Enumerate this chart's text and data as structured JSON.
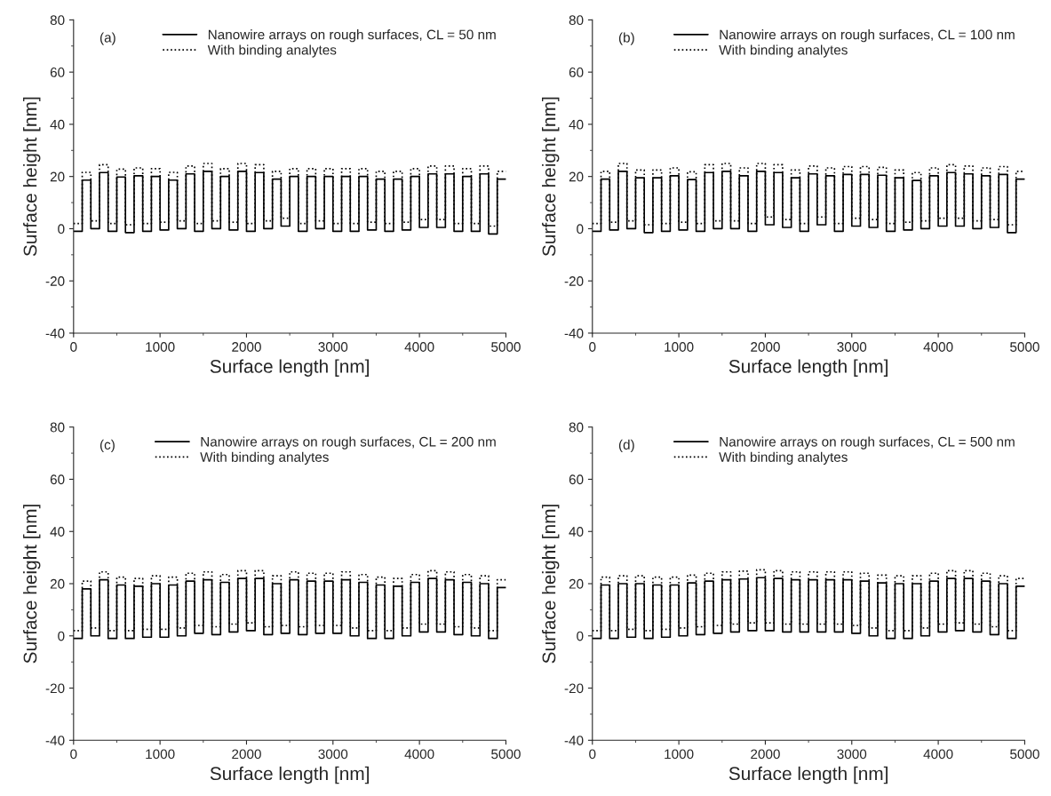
{
  "chart_data": [
    {
      "type": "line",
      "annotations": [
        "(a)"
      ],
      "xlabel": "Surface length [nm]",
      "ylabel": "Surface height [nm]",
      "xlim": [
        0,
        5000
      ],
      "xticks": [
        0,
        1000,
        2000,
        3000,
        4000,
        5000
      ],
      "ylim": [
        -40,
        80
      ],
      "yticks": [
        -40,
        -20,
        0,
        20,
        40,
        60,
        80
      ],
      "grid": false,
      "legend": "top right",
      "marker": "none",
      "x": [
        0,
        100,
        100,
        200,
        200,
        300,
        300,
        400,
        400,
        500,
        500,
        600,
        600,
        700,
        700,
        800,
        800,
        900,
        900,
        1000,
        1000,
        1100,
        1100,
        1200,
        1200,
        1300,
        1300,
        1400,
        1400,
        1500,
        1500,
        1600,
        1600,
        1700,
        1700,
        1800,
        1800,
        1900,
        1900,
        2000,
        2000,
        2100,
        2100,
        2200,
        2200,
        2300,
        2300,
        2400,
        2400,
        2500,
        2500,
        2600,
        2600,
        2700,
        2700,
        2800,
        2800,
        2900,
        2900,
        3000,
        3000,
        3100,
        3100,
        3200,
        3200,
        3300,
        3300,
        3400,
        3400,
        3500,
        3500,
        3600,
        3600,
        3700,
        3700,
        3800,
        3800,
        3900,
        3900,
        4000,
        4000,
        4100,
        4100,
        4200,
        4200,
        4300,
        4300,
        4400,
        4400,
        4500,
        4500,
        4600,
        4600,
        4700,
        4700,
        4800,
        4800,
        4900,
        4900,
        5000
      ],
      "series": [
        {
          "name": "Nanowire arrays on rough surfaces, CL = 50 nm",
          "color": "#000000",
          "line_style": "solid",
          "values": [
            -1,
            -1,
            18.6,
            18.6,
            0,
            0,
            21.5,
            21.5,
            -1,
            -1,
            19.8,
            19.8,
            -1.5,
            -1.5,
            20.3,
            20.3,
            -1,
            -1,
            20,
            20,
            -0.5,
            -0.5,
            18.6,
            18.6,
            0,
            0,
            21,
            21,
            -1,
            -1,
            22,
            22,
            0,
            0,
            20,
            20,
            -0.5,
            -0.5,
            22,
            22,
            -1,
            -1,
            21.5,
            21.5,
            0,
            0,
            19,
            19,
            1,
            1,
            20,
            20,
            -1,
            -1,
            20,
            20,
            0,
            0,
            20,
            20,
            -1,
            -1,
            20,
            20,
            -1,
            -1,
            20,
            20,
            -0.5,
            -0.5,
            19,
            19,
            -1,
            -1,
            19,
            19,
            -0.5,
            -0.5,
            20,
            20,
            0.5,
            0.5,
            21,
            21,
            0.5,
            0.5,
            21,
            21,
            -1,
            -1,
            20,
            20,
            -1,
            -1,
            21,
            21,
            -2,
            -2,
            19,
            19
          ]
        },
        {
          "name": "With binding analytes",
          "color": "#000000",
          "line_style": "dotted",
          "values": [
            2,
            2,
            21.6,
            21.6,
            3,
            3,
            24.5,
            24.5,
            2,
            2,
            22.8,
            22.8,
            1.5,
            1.5,
            23.3,
            23.3,
            2,
            2,
            23,
            23,
            2.5,
            2.5,
            21.6,
            21.6,
            3,
            3,
            24,
            24,
            2,
            2,
            25,
            25,
            3,
            3,
            23,
            23,
            2.5,
            2.5,
            25,
            25,
            2,
            2,
            24.5,
            24.5,
            3,
            3,
            22,
            22,
            4,
            4,
            23,
            23,
            2,
            2,
            23,
            23,
            3,
            3,
            23,
            23,
            2,
            2,
            23,
            23,
            2,
            2,
            23,
            23,
            2.5,
            2.5,
            22,
            22,
            2,
            2,
            22,
            22,
            2.5,
            2.5,
            23,
            23,
            3.5,
            3.5,
            24,
            24,
            3.5,
            3.5,
            24,
            24,
            2,
            2,
            23,
            23,
            2,
            2,
            24,
            24,
            1,
            1,
            22,
            22
          ]
        }
      ]
    },
    {
      "type": "line",
      "annotations": [
        "(b)"
      ],
      "xlabel": "Surface length [nm]",
      "ylabel": "Surface height [nm]",
      "xlim": [
        0,
        5000
      ],
      "xticks": [
        0,
        1000,
        2000,
        3000,
        4000,
        5000
      ],
      "ylim": [
        -40,
        80
      ],
      "yticks": [
        -40,
        -20,
        0,
        20,
        40,
        60,
        80
      ],
      "grid": false,
      "legend": "top right",
      "marker": "none",
      "x": [
        0,
        100,
        100,
        200,
        200,
        300,
        300,
        400,
        400,
        500,
        500,
        600,
        600,
        700,
        700,
        800,
        800,
        900,
        900,
        1000,
        1000,
        1100,
        1100,
        1200,
        1200,
        1300,
        1300,
        1400,
        1400,
        1500,
        1500,
        1600,
        1600,
        1700,
        1700,
        1800,
        1800,
        1900,
        1900,
        2000,
        2000,
        2100,
        2100,
        2200,
        2200,
        2300,
        2300,
        2400,
        2400,
        2500,
        2500,
        2600,
        2600,
        2700,
        2700,
        2800,
        2800,
        2900,
        2900,
        3000,
        3000,
        3100,
        3100,
        3200,
        3200,
        3300,
        3300,
        3400,
        3400,
        3500,
        3500,
        3600,
        3600,
        3700,
        3700,
        3800,
        3800,
        3900,
        3900,
        4000,
        4000,
        4100,
        4100,
        4200,
        4200,
        4300,
        4300,
        4400,
        4400,
        4500,
        4500,
        4600,
        4600,
        4700,
        4700,
        4800,
        4800,
        4900,
        4900,
        5000
      ],
      "series": [
        {
          "name": "Nanowire arrays on rough surfaces, CL = 100 nm",
          "color": "#000000",
          "line_style": "solid",
          "values": [
            -1,
            -1,
            19,
            19,
            -0.5,
            -0.5,
            22,
            22,
            0,
            0,
            19.5,
            19.5,
            -1.5,
            -1.5,
            19.5,
            19.5,
            -1,
            -1,
            20.3,
            20.3,
            -0.5,
            -0.5,
            18.8,
            18.8,
            -1,
            -1,
            21.5,
            21.5,
            0,
            0,
            22,
            22,
            0,
            0,
            20.3,
            20.3,
            -1,
            -1,
            22,
            22,
            1.5,
            1.5,
            21.5,
            21.5,
            0.5,
            0.5,
            19.5,
            19.5,
            -1,
            -1,
            21,
            21,
            1.5,
            1.5,
            20.3,
            20.3,
            -1,
            -1,
            20.8,
            20.8,
            1,
            1,
            20.8,
            20.8,
            0.5,
            0.5,
            20.5,
            20.5,
            -1,
            -1,
            19.5,
            19.5,
            -0.5,
            -0.5,
            18.5,
            18.5,
            0,
            0,
            20.3,
            20.3,
            1,
            1,
            21.5,
            21.5,
            1,
            1,
            21,
            21,
            0,
            0,
            20.3,
            20.3,
            0.5,
            0.5,
            20.8,
            20.8,
            -1.5,
            -1.5,
            19,
            19
          ]
        },
        {
          "name": "With binding analytes",
          "color": "#000000",
          "line_style": "dotted",
          "values": [
            2,
            2,
            22,
            22,
            2.5,
            2.5,
            25,
            25,
            3,
            3,
            22.5,
            22.5,
            1.5,
            1.5,
            22.5,
            22.5,
            2,
            2,
            23.3,
            23.3,
            2.5,
            2.5,
            21.8,
            21.8,
            2,
            2,
            24.5,
            24.5,
            3,
            3,
            25,
            25,
            3,
            3,
            23.3,
            23.3,
            2,
            2,
            25,
            25,
            4.5,
            4.5,
            24.5,
            24.5,
            3.5,
            3.5,
            22.5,
            22.5,
            2,
            2,
            24,
            24,
            4.5,
            4.5,
            23.3,
            23.3,
            2,
            2,
            23.8,
            23.8,
            4,
            4,
            23.8,
            23.8,
            3.5,
            3.5,
            23.5,
            23.5,
            2,
            2,
            22.5,
            22.5,
            2.5,
            2.5,
            21.5,
            21.5,
            3,
            3,
            23.3,
            23.3,
            4,
            4,
            24.5,
            24.5,
            4,
            4,
            24,
            24,
            3,
            3,
            23.3,
            23.3,
            3.5,
            3.5,
            23.8,
            23.8,
            1.5,
            1.5,
            22,
            22
          ]
        }
      ]
    },
    {
      "type": "line",
      "annotations": [
        "(c)"
      ],
      "xlabel": "Surface length [nm]",
      "ylabel": "Surface height [nm]",
      "xlim": [
        0,
        5000
      ],
      "xticks": [
        0,
        1000,
        2000,
        3000,
        4000,
        5000
      ],
      "ylim": [
        -40,
        80
      ],
      "yticks": [
        -40,
        -20,
        0,
        20,
        40,
        60,
        80
      ],
      "grid": false,
      "legend": "top right",
      "marker": "none",
      "x": [
        0,
        100,
        100,
        200,
        200,
        300,
        300,
        400,
        400,
        500,
        500,
        600,
        600,
        700,
        700,
        800,
        800,
        900,
        900,
        1000,
        1000,
        1100,
        1100,
        1200,
        1200,
        1300,
        1300,
        1400,
        1400,
        1500,
        1500,
        1600,
        1600,
        1700,
        1700,
        1800,
        1800,
        1900,
        1900,
        2000,
        2000,
        2100,
        2100,
        2200,
        2200,
        2300,
        2300,
        2400,
        2400,
        2500,
        2500,
        2600,
        2600,
        2700,
        2700,
        2800,
        2800,
        2900,
        2900,
        3000,
        3000,
        3100,
        3100,
        3200,
        3200,
        3300,
        3300,
        3400,
        3400,
        3500,
        3500,
        3600,
        3600,
        3700,
        3700,
        3800,
        3800,
        3900,
        3900,
        4000,
        4000,
        4100,
        4100,
        4200,
        4200,
        4300,
        4300,
        4400,
        4400,
        4500,
        4500,
        4600,
        4600,
        4700,
        4700,
        4800,
        4800,
        4900,
        4900,
        5000
      ],
      "series": [
        {
          "name": "Nanowire arrays on rough surfaces, CL = 200 nm",
          "color": "#000000",
          "line_style": "solid",
          "values": [
            -1,
            -1,
            18,
            18,
            0,
            0,
            21.5,
            21.5,
            -1,
            -1,
            19.5,
            19.5,
            -1,
            -1,
            19,
            19,
            -0.5,
            -0.5,
            20,
            20,
            -0.5,
            -0.5,
            19.5,
            19.5,
            0,
            0,
            21,
            21,
            1,
            1,
            21.5,
            21.5,
            0.5,
            0.5,
            20.5,
            20.5,
            1.5,
            1.5,
            22,
            22,
            2,
            2,
            22,
            22,
            0.5,
            0.5,
            20,
            20,
            1,
            1,
            21.5,
            21.5,
            0.5,
            0.5,
            21,
            21,
            1,
            1,
            21,
            21,
            1,
            1,
            21.5,
            21.5,
            0,
            0,
            20.5,
            20.5,
            -1,
            -1,
            19.5,
            19.5,
            -1,
            -1,
            19,
            19,
            0,
            0,
            20.5,
            20.5,
            1.5,
            1.5,
            22,
            22,
            1.5,
            1.5,
            21.5,
            21.5,
            0.5,
            0.5,
            20.5,
            20.5,
            0,
            0,
            20,
            20,
            -1,
            -1,
            18.5,
            18.5
          ]
        },
        {
          "name": "With binding analytes",
          "color": "#000000",
          "line_style": "dotted",
          "values": [
            2,
            2,
            21,
            21,
            3,
            3,
            24.5,
            24.5,
            2,
            2,
            22.5,
            22.5,
            2,
            2,
            22,
            22,
            2.5,
            2.5,
            23,
            23,
            2.5,
            2.5,
            22.5,
            22.5,
            3,
            3,
            24,
            24,
            4,
            4,
            24.5,
            24.5,
            3.5,
            3.5,
            23.5,
            23.5,
            4.5,
            4.5,
            25,
            25,
            5,
            5,
            25,
            25,
            3.5,
            3.5,
            23,
            23,
            4,
            4,
            24.5,
            24.5,
            3.5,
            3.5,
            24,
            24,
            4,
            4,
            24,
            24,
            4,
            4,
            24.5,
            24.5,
            3,
            3,
            23.5,
            23.5,
            2,
            2,
            22.5,
            22.5,
            2,
            2,
            22,
            22,
            3,
            3,
            23.5,
            23.5,
            4.5,
            4.5,
            25,
            25,
            4.5,
            4.5,
            24.5,
            24.5,
            3.5,
            3.5,
            23.5,
            23.5,
            3,
            3,
            23,
            23,
            2,
            2,
            21.5,
            21.5
          ]
        }
      ]
    },
    {
      "type": "line",
      "annotations": [
        "(d)"
      ],
      "xlabel": "Surface length [nm]",
      "ylabel": "Surface height [nm]",
      "xlim": [
        0,
        5000
      ],
      "xticks": [
        0,
        1000,
        2000,
        3000,
        4000,
        5000
      ],
      "ylim": [
        -40,
        80
      ],
      "yticks": [
        -40,
        -20,
        0,
        20,
        40,
        60,
        80
      ],
      "grid": false,
      "legend": "top right",
      "marker": "none",
      "x": [
        0,
        100,
        100,
        200,
        200,
        300,
        300,
        400,
        400,
        500,
        500,
        600,
        600,
        700,
        700,
        800,
        800,
        900,
        900,
        1000,
        1000,
        1100,
        1100,
        1200,
        1200,
        1300,
        1300,
        1400,
        1400,
        1500,
        1500,
        1600,
        1600,
        1700,
        1700,
        1800,
        1800,
        1900,
        1900,
        2000,
        2000,
        2100,
        2100,
        2200,
        2200,
        2300,
        2300,
        2400,
        2400,
        2500,
        2500,
        2600,
        2600,
        2700,
        2700,
        2800,
        2800,
        2900,
        2900,
        3000,
        3000,
        3100,
        3100,
        3200,
        3200,
        3300,
        3300,
        3400,
        3400,
        3500,
        3500,
        3600,
        3600,
        3700,
        3700,
        3800,
        3800,
        3900,
        3900,
        4000,
        4000,
        4100,
        4100,
        4200,
        4200,
        4300,
        4300,
        4400,
        4400,
        4500,
        4500,
        4600,
        4600,
        4700,
        4700,
        4800,
        4800,
        4900,
        4900,
        5000
      ],
      "series": [
        {
          "name": "Nanowire arrays on rough surfaces, CL = 500 nm",
          "color": "#000000",
          "line_style": "solid",
          "values": [
            -1,
            -1,
            19.5,
            19.5,
            -1,
            -1,
            20,
            20,
            -0.5,
            -0.5,
            20,
            20,
            -1,
            -1,
            19.5,
            19.5,
            -0.5,
            -0.5,
            19.5,
            19.5,
            0,
            0,
            20.3,
            20.3,
            0.5,
            0.5,
            21,
            21,
            1,
            1,
            21.5,
            21.5,
            1.5,
            1.5,
            21.8,
            21.8,
            2,
            2,
            22.3,
            22.3,
            2,
            2,
            22,
            22,
            1.5,
            1.5,
            21.5,
            21.5,
            1.5,
            1.5,
            21.5,
            21.5,
            1.5,
            1.5,
            21.5,
            21.5,
            1.5,
            1.5,
            21.5,
            21.5,
            1,
            1,
            21,
            21,
            0,
            0,
            20.3,
            20.3,
            -1,
            -1,
            20,
            20,
            -1,
            -1,
            20,
            20,
            0,
            0,
            21,
            21,
            1.5,
            1.5,
            22,
            22,
            2,
            2,
            22,
            22,
            1.5,
            1.5,
            21,
            21,
            0.5,
            0.5,
            20,
            20,
            -1,
            -1,
            19,
            19
          ]
        },
        {
          "name": "With binding analytes",
          "color": "#000000",
          "line_style": "dotted",
          "values": [
            2,
            2,
            22.5,
            22.5,
            2,
            2,
            23,
            23,
            2.5,
            2.5,
            23,
            23,
            2,
            2,
            22.5,
            22.5,
            2.5,
            2.5,
            22.5,
            22.5,
            3,
            3,
            23.3,
            23.3,
            3.5,
            3.5,
            24,
            24,
            4,
            4,
            24.5,
            24.5,
            4.5,
            4.5,
            24.8,
            24.8,
            5,
            5,
            25.3,
            25.3,
            5,
            5,
            25,
            25,
            4.5,
            4.5,
            24.5,
            24.5,
            4.5,
            4.5,
            24.5,
            24.5,
            4.5,
            4.5,
            24.5,
            24.5,
            4.5,
            4.5,
            24.5,
            24.5,
            4,
            4,
            24,
            24,
            3,
            3,
            23.3,
            23.3,
            2,
            2,
            23,
            23,
            2,
            2,
            23,
            23,
            3,
            3,
            24,
            24,
            4.5,
            4.5,
            25,
            25,
            5,
            5,
            25,
            25,
            4.5,
            4.5,
            24,
            24,
            3.5,
            3.5,
            23,
            23,
            2,
            2,
            22,
            22
          ]
        }
      ]
    }
  ]
}
